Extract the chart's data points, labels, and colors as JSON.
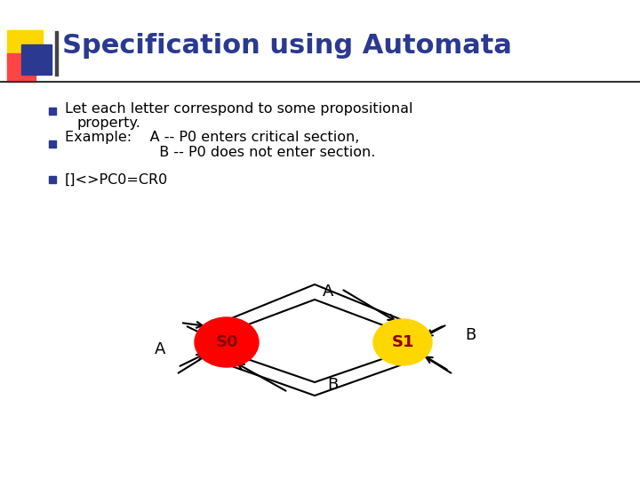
{
  "title": "Specification using Automata",
  "title_color": "#2B3990",
  "title_fontsize": 22,
  "bg_color": "#FFFFFF",
  "bullet_color": "#000000",
  "bullet_fontsize": 11.5,
  "bullet1": "Let each letter correspond to some propositional\nproperty.",
  "bullet2_line1": "Example:    A -- P0 enters critical section,",
  "bullet2_line2": "                  B -- P0 does not enter section.",
  "bullet3": "[]<>PC0=CR0",
  "s0_color": "#FF0000",
  "s1_color": "#FFD700",
  "s0_label": "S0",
  "s1_label": "S1",
  "node_label_color": "#8B0000",
  "header_bar_color": "#2B3990",
  "header_accent_yellow": "#FFD700",
  "header_accent_red": "#FF4444",
  "line_color": "#000000",
  "sep_line_color": "#333333"
}
